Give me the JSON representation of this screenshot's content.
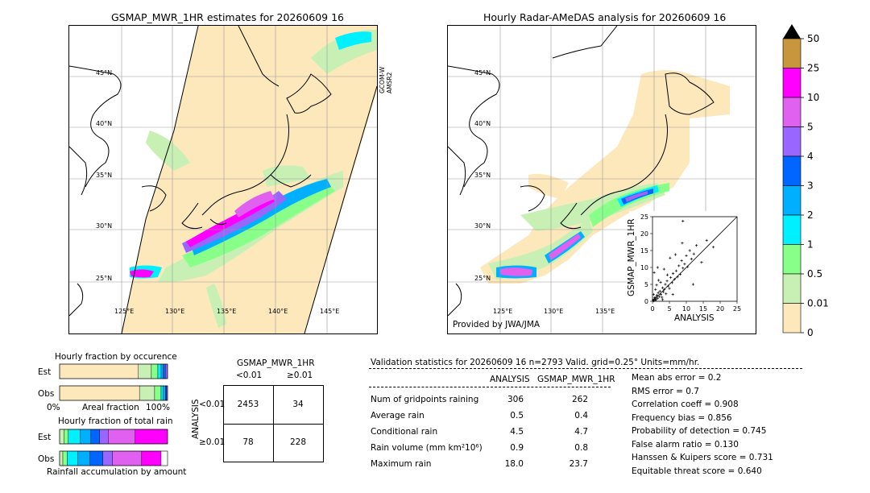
{
  "left_map": {
    "title": "GSMAP_MWR_1HR estimates for 20260609 16",
    "satellite_label": [
      "GCOM-W",
      "AMSR2"
    ],
    "lat_labels": [
      "45°N",
      "40°N",
      "35°N",
      "30°N",
      "25°N"
    ],
    "lon_labels": [
      "125°E",
      "130°E",
      "135°E",
      "140°E",
      "145°E"
    ]
  },
  "right_map": {
    "title": "Hourly Radar-AMeDAS analysis for 20260609 16",
    "lat_labels": [
      "45°N",
      "40°N",
      "35°N",
      "30°N",
      "25°N"
    ],
    "lon_labels": [
      "125°E",
      "130°E",
      "135°E"
    ],
    "credit": "Provided by JWA/JMA"
  },
  "colorbar": {
    "labels": [
      "50",
      "25",
      "10",
      "5",
      "4",
      "3",
      "2",
      "1",
      "0.5",
      "0.01",
      "0"
    ],
    "colors": [
      "#c8963c",
      "#ff00ff",
      "#e060f0",
      "#9966ff",
      "#0066ff",
      "#00b0ff",
      "#00f0ff",
      "#88ff88",
      "#c8f0b4",
      "#fde8bc"
    ],
    "over_color": "#000000"
  },
  "scatter": {
    "xlabel": "ANALYSIS",
    "ylabel": "GSMAP_MWR_1HR",
    "ticks": [
      "0",
      "5",
      "10",
      "15",
      "20",
      "25"
    ],
    "range": [
      0,
      25
    ]
  },
  "chart_data": {
    "type": "scatter",
    "x": [
      0.2,
      0.4,
      0.5,
      0.6,
      0.8,
      1.0,
      1.1,
      1.3,
      1.5,
      1.7,
      2.0,
      2.2,
      2.5,
      2.8,
      3.0,
      3.2,
      3.5,
      3.8,
      4.0,
      4.3,
      4.6,
      5.0,
      5.4,
      5.8,
      6.1,
      6.5,
      7.0,
      7.4,
      7.8,
      8.2,
      8.6,
      9.0,
      9.5,
      10.0,
      10.4,
      11.0,
      11.5,
      12.2,
      13.0,
      14.5,
      16.0,
      18.0,
      0.3,
      0.9,
      1.2,
      1.8,
      2.4,
      3.4,
      4.4,
      5.2,
      6.8,
      8.8,
      0.5,
      1.5,
      3.0,
      6.0,
      9.0,
      12.0
    ],
    "y": [
      0.3,
      0.1,
      0.6,
      1.0,
      0.4,
      1.2,
      0.5,
      1.8,
      0.9,
      2.5,
      1.4,
      3.0,
      2.0,
      1.2,
      4.0,
      2.8,
      3.5,
      5.0,
      2.2,
      6.0,
      4.5,
      3.8,
      7.0,
      5.5,
      8.2,
      6.5,
      9.0,
      7.2,
      10.5,
      8.0,
      12.0,
      9.8,
      11.0,
      13.5,
      10.2,
      15.0,
      12.5,
      14.0,
      16.5,
      11.5,
      18.0,
      16.0,
      2.0,
      3.5,
      4.8,
      6.2,
      5.6,
      9.5,
      7.8,
      12.8,
      13.8,
      17.2,
      8.5,
      10.0,
      0.5,
      2.0,
      23.7,
      5.0
    ]
  },
  "occurrence": {
    "title": "Hourly fraction by occurence",
    "rows": [
      "Est",
      "Obs"
    ],
    "xlabel": "Areal fraction",
    "x_left": "0%",
    "x_right": "100%",
    "est_fractions": [
      0.73,
      0.12,
      0.06,
      0.03,
      0.02,
      0.02,
      0.02
    ],
    "obs_fractions": [
      0.74,
      0.14,
      0.06,
      0.02,
      0.02,
      0.01,
      0.01
    ]
  },
  "total_rain": {
    "title": "Hourly fraction of total rain",
    "rows": [
      "Est",
      "Obs"
    ],
    "xlabel": "Rainfall accumulation by amount",
    "est_fractions": [
      0.04,
      0.04,
      0.11,
      0.1,
      0.08,
      0.08,
      0.25,
      0.3
    ],
    "obs_fractions": [
      0.03,
      0.04,
      0.1,
      0.11,
      0.12,
      0.09,
      0.27,
      0.18
    ]
  },
  "contingency": {
    "title": "GSMAP_MWR_1HR",
    "col_headers": [
      "<0.01",
      "≥0.01"
    ],
    "row_title": "ANALYSIS",
    "row_headers": [
      "<0.01",
      "≥0.01"
    ],
    "cells": [
      [
        "2453",
        "34"
      ],
      [
        "78",
        "228"
      ]
    ]
  },
  "validation": {
    "header": "Validation statistics for 20260609 16  n=2793 Valid. grid=0.25° Units=mm/hr.",
    "col1": "ANALYSIS",
    "col2": "GSMAP_MWR_1HR",
    "rows": [
      {
        "label": "Num of gridpoints raining",
        "a": "306",
        "b": "262"
      },
      {
        "label": "Average rain",
        "a": "0.5",
        "b": "0.4"
      },
      {
        "label": "Conditional rain",
        "a": "4.5",
        "b": "4.7"
      },
      {
        "label": "Rain volume (mm km²10⁶)",
        "a": "0.9",
        "b": "0.8"
      },
      {
        "label": "Maximum rain",
        "a": "18.0",
        "b": "23.7"
      }
    ],
    "scores": [
      "Mean abs error =    0.2",
      "RMS error =    0.7",
      "Correlation coeff =  0.908",
      "Frequency bias =  0.856",
      "Probability of detection =  0.745",
      "False alarm ratio =  0.130",
      "Hanssen & Kuipers score =  0.731",
      "Equitable threat score =  0.640"
    ]
  }
}
